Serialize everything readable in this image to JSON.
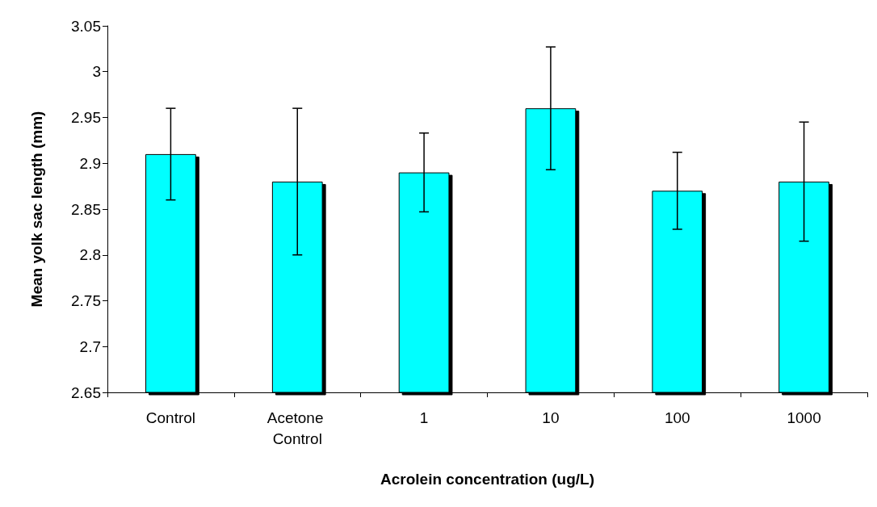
{
  "chart_data": {
    "type": "bar",
    "xlabel": "Acrolein concentration (ug/L)",
    "ylabel": "Mean yolk sac length (mm)",
    "categories": [
      "Control",
      "Acetone Control",
      "1",
      "10",
      "100",
      "1000"
    ],
    "values": [
      2.91,
      2.88,
      2.89,
      2.96,
      2.87,
      2.88
    ],
    "errors": [
      0.05,
      0.08,
      0.043,
      0.067,
      0.042,
      0.065
    ],
    "color": "#00ffff",
    "ylim": [
      2.65,
      3.05
    ],
    "yticks": [
      2.65,
      2.7,
      2.75,
      2.8,
      2.85,
      2.9,
      2.95,
      3,
      3.05
    ],
    "grid": false
  }
}
